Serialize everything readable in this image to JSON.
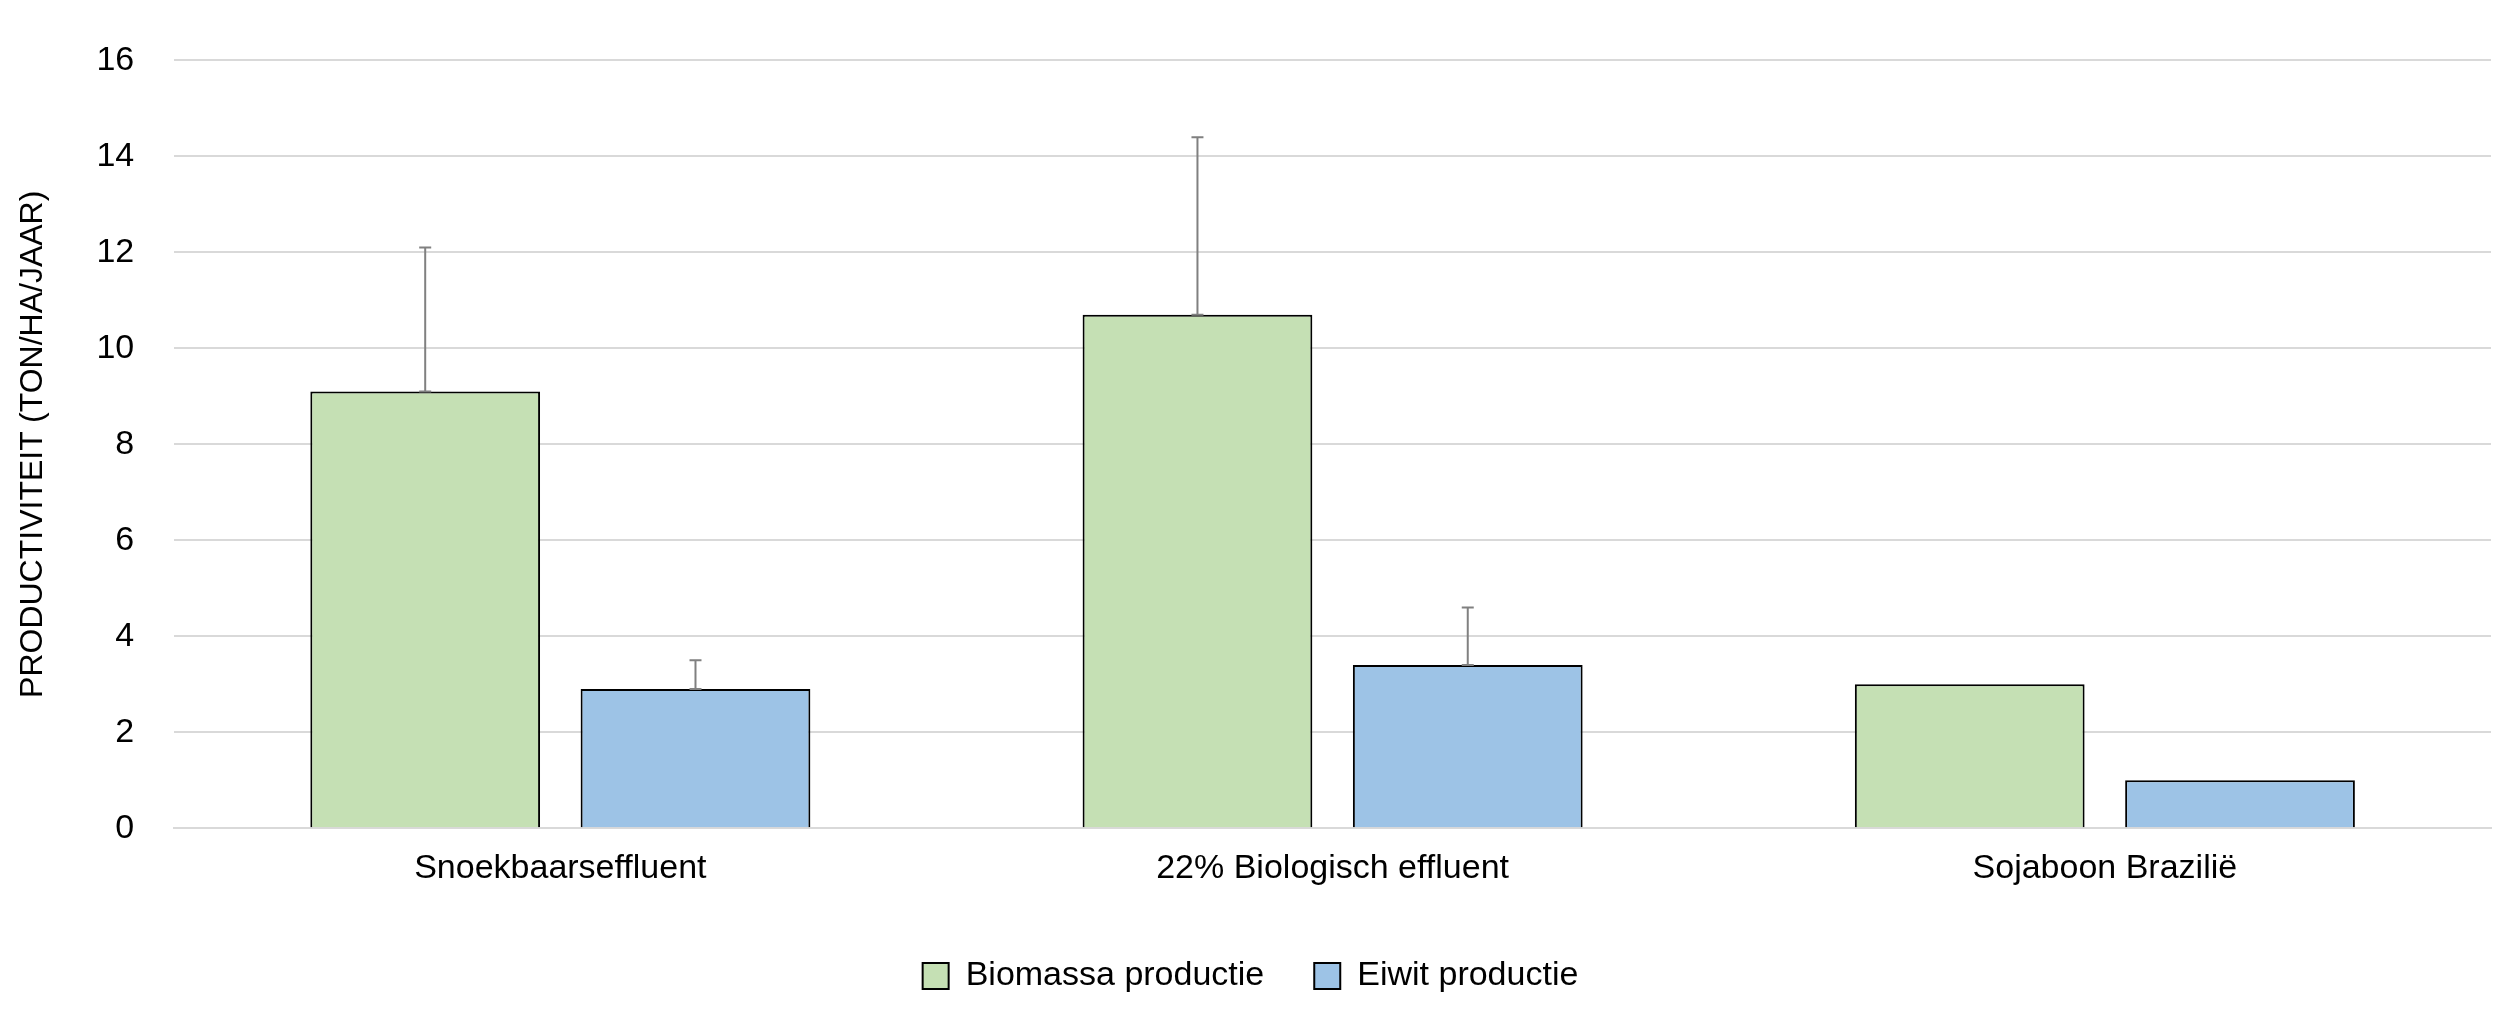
{
  "chart_data": {
    "type": "bar",
    "ylabel": "PRODUCTIVITEIT (TON/HA/JAAR)",
    "categories": [
      "Snoekbaarseffluent",
      "22% Biologisch effluent",
      "Sojaboon Brazilië"
    ],
    "series": [
      {
        "name": "Biomassa productie",
        "color": "#c5e0b4",
        "values": [
          9.1,
          10.7,
          3.0
        ],
        "errors": [
          [
            9.1,
            12.1
          ],
          [
            10.7,
            14.4
          ],
          null
        ]
      },
      {
        "name": "Eiwit productie",
        "color": "#9dc3e6",
        "values": [
          2.9,
          3.4,
          1.0
        ],
        "errors": [
          [
            2.9,
            3.5
          ],
          [
            3.4,
            4.6
          ],
          null
        ]
      }
    ],
    "ylim": [
      0,
      16
    ],
    "yticks": [
      0,
      2,
      4,
      6,
      8,
      10,
      12,
      14,
      16
    ],
    "grid": "y",
    "legend": "bottom"
  }
}
